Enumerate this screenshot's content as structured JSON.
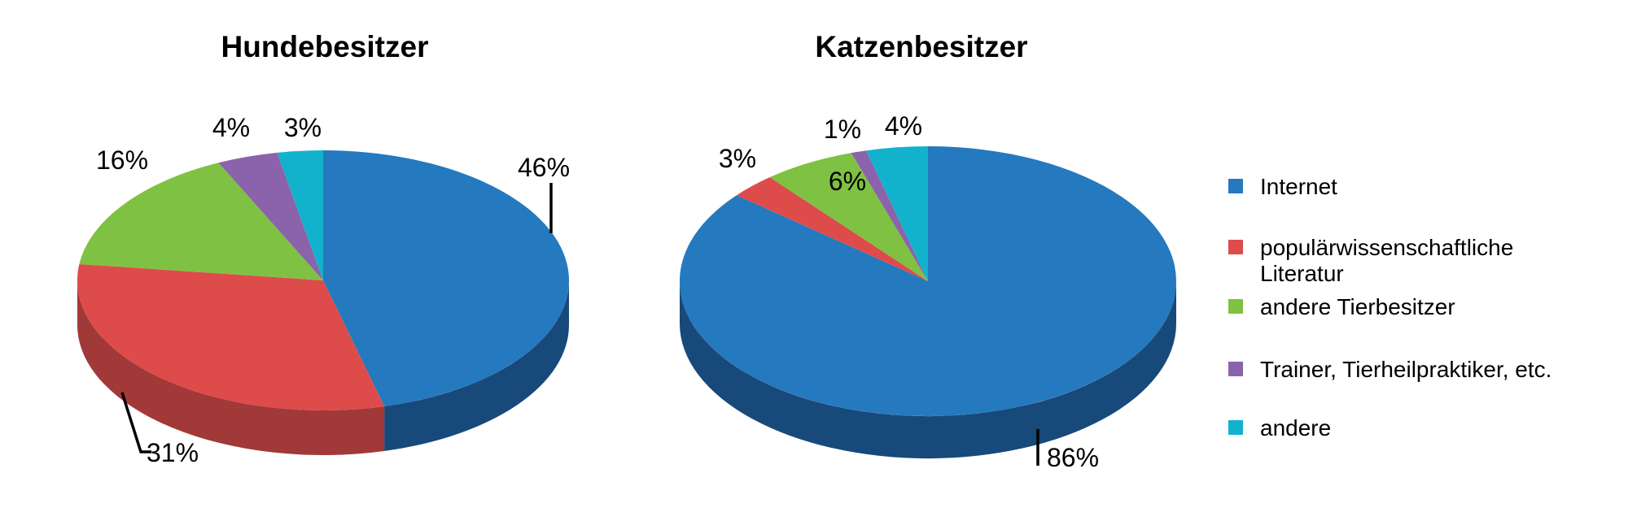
{
  "page": {
    "background": "#ffffff",
    "text_color": "#000000"
  },
  "legend": {
    "position": "right",
    "items": [
      {
        "label": "Internet",
        "color": "#2579be"
      },
      {
        "label": "populärwissenschaftliche\nLiteratur",
        "color": "#dd4b4b"
      },
      {
        "label": "andere Tierbesitzer",
        "color": "#7fc142"
      },
      {
        "label": "Trainer, Tierheilpraktiker, etc.",
        "color": "#8a63ab"
      },
      {
        "label": "andere",
        "color": "#12b2cd"
      }
    ]
  },
  "chart_data": [
    {
      "type": "pie",
      "style": "3d",
      "title": "Hundebesitzer",
      "unit": "%",
      "start_angle_deg": 0,
      "direction": "clockwise",
      "categories": [
        "Internet",
        "populärwissenschaftliche Literatur",
        "andere Tierbesitzer",
        "Trainer, Tierheilpraktiker, etc.",
        "andere"
      ],
      "values": [
        46,
        31,
        16,
        4,
        3
      ],
      "value_labels": [
        "46%",
        "31%",
        "16%",
        "4%",
        "3%"
      ],
      "colors": [
        "#2579be",
        "#dd4b4b",
        "#7fc142",
        "#8a63ab",
        "#12b2cd"
      ],
      "side_colors": [
        "#17497b",
        "#a23939",
        "#55892c",
        "#5f4378",
        "#0b7f93"
      ],
      "legend_position": "right"
    },
    {
      "type": "pie",
      "style": "3d",
      "title": "Katzenbesitzer",
      "unit": "%",
      "start_angle_deg": 0,
      "direction": "clockwise",
      "categories": [
        "Internet",
        "populärwissenschaftliche Literatur",
        "andere Tierbesitzer",
        "Trainer, Tierheilpraktiker, etc.",
        "andere"
      ],
      "values": [
        86,
        3,
        6,
        1,
        4
      ],
      "value_labels": [
        "86%",
        "3%",
        "6%",
        "1%",
        "4%"
      ],
      "colors": [
        "#2579be",
        "#dd4b4b",
        "#7fc142",
        "#8a63ab",
        "#12b2cd"
      ],
      "side_colors": [
        "#17497b",
        "#a23939",
        "#55892c",
        "#5f4378",
        "#0b7f93"
      ],
      "legend_position": "right"
    }
  ]
}
